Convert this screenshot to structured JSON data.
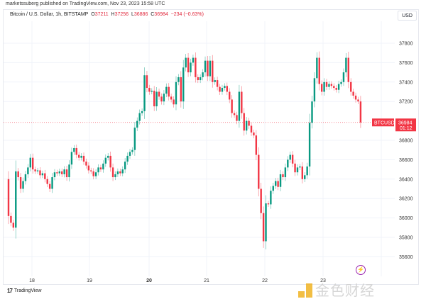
{
  "header": {
    "published": "marketssuberg published on TradingView.com, Nov 23, 2023 15:58 UTC"
  },
  "legend": {
    "symbol": "Bitcoin / U.S. Dollar, 1h, BITSTAMP",
    "o_label": "O",
    "o": "37211",
    "h_label": "H",
    "h": "37256",
    "l_label": "L",
    "l": "36886",
    "c_label": "C",
    "c": "36984",
    "change": "−234 (−0.63%)"
  },
  "currency": "USD",
  "footer": {
    "brand": "TradingView",
    "logo": "17"
  },
  "watermark": "金色财经",
  "icons": {
    "lightning": "lightning-icon"
  },
  "colors": {
    "up": "#089981",
    "down": "#f23645",
    "tag": "#f23645"
  },
  "chart_data": {
    "type": "candlestick",
    "interval": "1h",
    "ylim": [
      35550,
      38050
    ],
    "y_ticks": [
      35600,
      35800,
      36000,
      36200,
      36400,
      36600,
      36800,
      37200,
      37400,
      37600,
      37800
    ],
    "x_ticks": [
      {
        "label": "18",
        "bold": false
      },
      {
        "label": "19",
        "bold": false
      },
      {
        "label": "20",
        "bold": true
      },
      {
        "label": "21",
        "bold": false
      },
      {
        "label": "22",
        "bold": false
      },
      {
        "label": "23",
        "bold": false
      }
    ],
    "first_open": 36400,
    "closes": [
      36020,
      35950,
      35900,
      36480,
      36420,
      36300,
      36380,
      36450,
      36520,
      36620,
      36500,
      36480,
      36490,
      36440,
      36460,
      36400,
      36350,
      36300,
      36420,
      36470,
      36460,
      36480,
      36450,
      36500,
      36420,
      36550,
      36680,
      36720,
      36650,
      36620,
      36640,
      36580,
      36540,
      36490,
      36480,
      36430,
      36470,
      36520,
      36500,
      36560,
      36620,
      36640,
      36520,
      36420,
      36450,
      36480,
      36460,
      36500,
      36580,
      36640,
      36680,
      36700,
      36930,
      37000,
      37080,
      37100,
      37470,
      37340,
      37300,
      37310,
      37150,
      37300,
      37250,
      37200,
      37280,
      37350,
      37250,
      37220,
      37170,
      37400,
      37450,
      37200,
      37550,
      37650,
      37500,
      37600,
      37650,
      37450,
      37420,
      37450,
      37500,
      37620,
      37460,
      37620,
      37400,
      37420,
      37350,
      37300,
      37340,
      37360,
      37300,
      37220,
      37080,
      37060,
      37000,
      37300,
      37080,
      36900,
      37000,
      36950,
      36880,
      36850,
      36650,
      36300,
      36050,
      35760,
      36150,
      36140,
      36280,
      36330,
      36380,
      36320,
      36450,
      36420,
      36520,
      36600,
      36650,
      36560,
      36470,
      36520,
      36530,
      36400,
      36440,
      36530,
      36980,
      37200,
      37440,
      37650,
      37380,
      37300,
      37400,
      37350,
      37380,
      37360,
      37340,
      37320,
      37380,
      37400,
      37500,
      37650,
      37400,
      37300,
      37260,
      37220,
      37200,
      36984
    ],
    "last_price": {
      "symbol_tag": "BTCUSD",
      "price": "36984",
      "countdown": "01:12"
    }
  }
}
